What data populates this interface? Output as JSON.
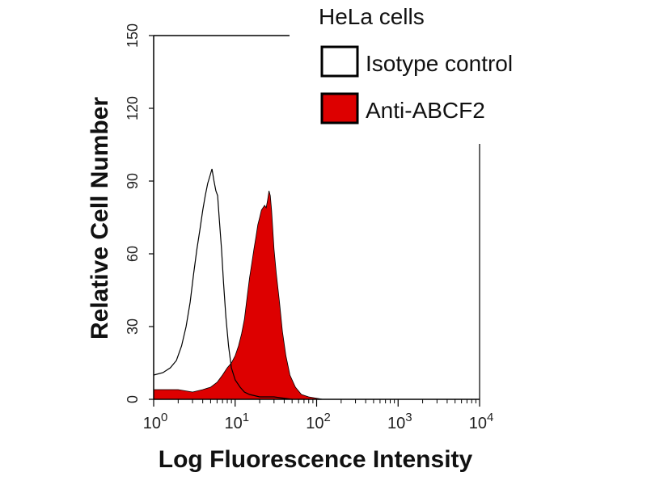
{
  "chart_data": {
    "type": "area",
    "title": "HeLa cells",
    "xlabel": "Log Fluorescence Intensity",
    "ylabel": "Relative Cell Number",
    "xscale": "log",
    "xlim": [
      1,
      10000
    ],
    "ylim": [
      0,
      150
    ],
    "x_ticks": [
      {
        "base": "10",
        "exp": "0",
        "value": 1
      },
      {
        "base": "10",
        "exp": "1",
        "value": 10
      },
      {
        "base": "10",
        "exp": "2",
        "value": 100
      },
      {
        "base": "10",
        "exp": "3",
        "value": 1000
      },
      {
        "base": "10",
        "exp": "4",
        "value": 10000
      }
    ],
    "y_ticks": [
      "0",
      "30",
      "60",
      "90",
      "120",
      "150"
    ],
    "legend": {
      "position": "top-right",
      "entries": [
        {
          "label": "Isotype control",
          "fill": "#ffffff",
          "stroke": "#000000"
        },
        {
          "label": "Anti-ABCF2",
          "fill": "#dd0000",
          "stroke": "#000000"
        }
      ]
    },
    "series": [
      {
        "name": "Isotype control",
        "style": "outline",
        "color": "#000000",
        "points": [
          [
            1.0,
            10
          ],
          [
            1.3,
            11
          ],
          [
            1.6,
            13
          ],
          [
            1.9,
            16
          ],
          [
            2.2,
            22
          ],
          [
            2.5,
            30
          ],
          [
            2.8,
            40
          ],
          [
            3.1,
            52
          ],
          [
            3.4,
            62
          ],
          [
            3.7,
            70
          ],
          [
            4.0,
            78
          ],
          [
            4.3,
            84
          ],
          [
            4.6,
            89
          ],
          [
            4.9,
            92
          ],
          [
            5.2,
            95
          ],
          [
            5.5,
            90
          ],
          [
            5.8,
            86
          ],
          [
            6.1,
            84
          ],
          [
            6.4,
            74
          ],
          [
            6.8,
            62
          ],
          [
            7.2,
            48
          ],
          [
            7.7,
            34
          ],
          [
            8.3,
            22
          ],
          [
            9.0,
            13
          ],
          [
            10.0,
            8
          ],
          [
            11.5,
            5
          ],
          [
            13.0,
            3
          ],
          [
            15.0,
            2
          ],
          [
            20.0,
            1
          ],
          [
            30.0,
            1
          ],
          [
            50.0,
            0
          ]
        ]
      },
      {
        "name": "Anti-ABCF2",
        "style": "filled",
        "color": "#dd0000",
        "points": [
          [
            1.0,
            4
          ],
          [
            2.0,
            4
          ],
          [
            3.0,
            3
          ],
          [
            4.0,
            4
          ],
          [
            5.0,
            5
          ],
          [
            6.0,
            7
          ],
          [
            7.0,
            10
          ],
          [
            8.0,
            13
          ],
          [
            9.0,
            15
          ],
          [
            10.0,
            18
          ],
          [
            11.0,
            22
          ],
          [
            12.0,
            27
          ],
          [
            13.0,
            33
          ],
          [
            14.0,
            42
          ],
          [
            15.0,
            50
          ],
          [
            16.0,
            56
          ],
          [
            17.0,
            62
          ],
          [
            18.0,
            67
          ],
          [
            19.0,
            72
          ],
          [
            20.0,
            75
          ],
          [
            21.0,
            78
          ],
          [
            22.0,
            79
          ],
          [
            23.0,
            80
          ],
          [
            24.0,
            79
          ],
          [
            25.0,
            82
          ],
          [
            26.0,
            86
          ],
          [
            27.0,
            84
          ],
          [
            28.0,
            78
          ],
          [
            29.0,
            70
          ],
          [
            30.0,
            62
          ],
          [
            32.0,
            52
          ],
          [
            35.0,
            40
          ],
          [
            38.0,
            28
          ],
          [
            42.0,
            18
          ],
          [
            47.0,
            10
          ],
          [
            55.0,
            5
          ],
          [
            65.0,
            2
          ],
          [
            80.0,
            1
          ],
          [
            120.0,
            0
          ]
        ]
      }
    ]
  }
}
